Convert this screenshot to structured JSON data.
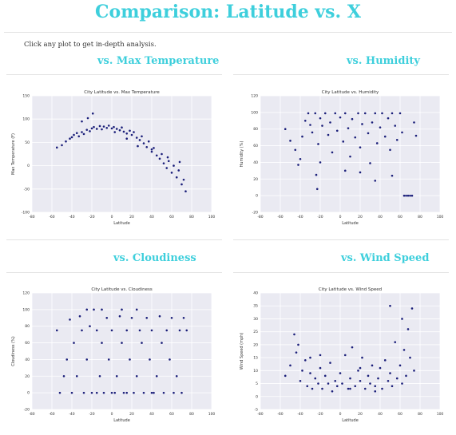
{
  "page": {
    "title": "Comparison: Latitude vs. X",
    "intro": "Click any plot to get in-depth analysis."
  },
  "sections": [
    {
      "heading": "vs. Max Temperature"
    },
    {
      "heading": "vs. Humidity"
    },
    {
      "heading": "vs. Cloudiness"
    },
    {
      "heading": "vs. Wind Speed"
    }
  ],
  "colors": {
    "accent": "#3ecfdc",
    "point": "#1b1f7a",
    "plot_bg": "#eaeaf2"
  },
  "chart_data": [
    {
      "type": "scatter",
      "title": "City Latitude vs. Max Temperature",
      "xlabel": "Latitude",
      "ylabel": "Max Temperature (F)",
      "xlim": [
        -80,
        100
      ],
      "ylim": [
        -100,
        150
      ],
      "xticks": [
        -80,
        -60,
        -40,
        -20,
        0,
        20,
        40,
        60,
        80,
        100
      ],
      "yticks": [
        -100,
        -50,
        0,
        50,
        100,
        150
      ],
      "grid": true,
      "points": [
        [
          -55,
          39
        ],
        [
          -50,
          44
        ],
        [
          -46,
          52
        ],
        [
          -42,
          58
        ],
        [
          -40,
          61
        ],
        [
          -38,
          66
        ],
        [
          -35,
          70
        ],
        [
          -33,
          63
        ],
        [
          -30,
          72
        ],
        [
          -28,
          68
        ],
        [
          -25,
          77
        ],
        [
          -22,
          74
        ],
        [
          -20,
          80
        ],
        [
          -18,
          83
        ],
        [
          -15,
          79
        ],
        [
          -12,
          85
        ],
        [
          -10,
          78
        ],
        [
          -8,
          84
        ],
        [
          -5,
          81
        ],
        [
          -3,
          86
        ],
        [
          0,
          80
        ],
        [
          2,
          83
        ],
        [
          5,
          79
        ],
        [
          8,
          76
        ],
        [
          10,
          82
        ],
        [
          12,
          73
        ],
        [
          15,
          69
        ],
        [
          18,
          75
        ],
        [
          20,
          66
        ],
        [
          22,
          72
        ],
        [
          25,
          60
        ],
        [
          28,
          55
        ],
        [
          30,
          63
        ],
        [
          32,
          48
        ],
        [
          35,
          40
        ],
        [
          37,
          52
        ],
        [
          40,
          30
        ],
        [
          42,
          38
        ],
        [
          45,
          22
        ],
        [
          48,
          15
        ],
        [
          50,
          25
        ],
        [
          52,
          5
        ],
        [
          55,
          -5
        ],
        [
          57,
          10
        ],
        [
          60,
          -15
        ],
        [
          62,
          0
        ],
        [
          65,
          -25
        ],
        [
          67,
          -10
        ],
        [
          70,
          -40
        ],
        [
          72,
          -30
        ],
        [
          74,
          -55
        ],
        [
          -24,
          102
        ],
        [
          -19,
          112
        ],
        [
          -30,
          95
        ],
        [
          3,
          72
        ],
        [
          15,
          58
        ],
        [
          26,
          42
        ],
        [
          40,
          35
        ],
        [
          56,
          18
        ],
        [
          68,
          8
        ]
      ]
    },
    {
      "type": "scatter",
      "title": "City Latitude vs. Humidity",
      "xlabel": "Latitude",
      "ylabel": "Humidity (%)",
      "xlim": [
        -80,
        100
      ],
      "ylim": [
        -20,
        120
      ],
      "xticks": [
        -80,
        -60,
        -40,
        -20,
        0,
        20,
        40,
        60,
        80,
        100
      ],
      "yticks": [
        -20,
        0,
        20,
        40,
        60,
        80,
        100,
        120
      ],
      "grid": true,
      "points": [
        [
          -55,
          80
        ],
        [
          -50,
          66
        ],
        [
          -45,
          55
        ],
        [
          -42,
          37
        ],
        [
          -40,
          44
        ],
        [
          -38,
          71
        ],
        [
          -35,
          90
        ],
        [
          -32,
          99
        ],
        [
          -30,
          85
        ],
        [
          -28,
          76
        ],
        [
          -25,
          99
        ],
        [
          -22,
          62
        ],
        [
          -20,
          93
        ],
        [
          -18,
          84
        ],
        [
          -15,
          99
        ],
        [
          -12,
          73
        ],
        [
          -10,
          88
        ],
        [
          -8,
          52
        ],
        [
          -5,
          99
        ],
        [
          -3,
          78
        ],
        [
          0,
          94
        ],
        [
          3,
          65
        ],
        [
          5,
          99
        ],
        [
          8,
          81
        ],
        [
          10,
          47
        ],
        [
          12,
          92
        ],
        [
          15,
          70
        ],
        [
          18,
          99
        ],
        [
          20,
          58
        ],
        [
          22,
          86
        ],
        [
          25,
          99
        ],
        [
          28,
          75
        ],
        [
          30,
          39
        ],
        [
          32,
          88
        ],
        [
          35,
          99
        ],
        [
          37,
          63
        ],
        [
          40,
          82
        ],
        [
          42,
          99
        ],
        [
          45,
          71
        ],
        [
          48,
          93
        ],
        [
          50,
          55
        ],
        [
          52,
          99
        ],
        [
          55,
          84
        ],
        [
          57,
          67
        ],
        [
          60,
          99
        ],
        [
          62,
          76
        ],
        [
          64,
          0
        ],
        [
          66,
          0
        ],
        [
          68,
          0
        ],
        [
          70,
          0
        ],
        [
          72,
          0
        ],
        [
          74,
          88
        ],
        [
          76,
          72
        ],
        [
          -24,
          25
        ],
        [
          -23,
          8
        ],
        [
          -20,
          40
        ],
        [
          5,
          30
        ],
        [
          20,
          28
        ],
        [
          35,
          18
        ],
        [
          52,
          24
        ]
      ]
    },
    {
      "type": "scatter",
      "title": "City Latitude vs. Cloudiness",
      "xlabel": "Latitude",
      "ylabel": "Cloudiness (%)",
      "xlim": [
        -80,
        100
      ],
      "ylim": [
        -20,
        120
      ],
      "xticks": [
        -80,
        -60,
        -40,
        -20,
        0,
        20,
        40,
        60,
        80,
        100
      ],
      "yticks": [
        -20,
        0,
        20,
        40,
        60,
        80,
        100,
        120
      ],
      "grid": true,
      "points": [
        [
          -55,
          75
        ],
        [
          -52,
          0
        ],
        [
          -48,
          20
        ],
        [
          -45,
          40
        ],
        [
          -42,
          88
        ],
        [
          -40,
          0
        ],
        [
          -38,
          60
        ],
        [
          -35,
          20
        ],
        [
          -32,
          92
        ],
        [
          -30,
          75
        ],
        [
          -28,
          0
        ],
        [
          -25,
          40
        ],
        [
          -22,
          80
        ],
        [
          -20,
          0
        ],
        [
          -18,
          100
        ],
        [
          -15,
          75
        ],
        [
          -12,
          20
        ],
        [
          -10,
          60
        ],
        [
          -8,
          0
        ],
        [
          -5,
          90
        ],
        [
          -3,
          40
        ],
        [
          0,
          75
        ],
        [
          3,
          0
        ],
        [
          5,
          20
        ],
        [
          8,
          92
        ],
        [
          10,
          60
        ],
        [
          12,
          0
        ],
        [
          15,
          75
        ],
        [
          18,
          40
        ],
        [
          20,
          90
        ],
        [
          22,
          0
        ],
        [
          25,
          20
        ],
        [
          28,
          75
        ],
        [
          30,
          60
        ],
        [
          32,
          0
        ],
        [
          35,
          90
        ],
        [
          38,
          40
        ],
        [
          40,
          75
        ],
        [
          42,
          0
        ],
        [
          45,
          20
        ],
        [
          48,
          92
        ],
        [
          50,
          60
        ],
        [
          52,
          0
        ],
        [
          55,
          75
        ],
        [
          58,
          40
        ],
        [
          60,
          90
        ],
        [
          62,
          0
        ],
        [
          65,
          20
        ],
        [
          68,
          75
        ],
        [
          70,
          0
        ],
        [
          72,
          90
        ],
        [
          75,
          75
        ],
        [
          -25,
          100
        ],
        [
          -10,
          100
        ],
        [
          10,
          100
        ],
        [
          25,
          100
        ],
        [
          -15,
          0
        ],
        [
          0,
          0
        ],
        [
          15,
          0
        ],
        [
          40,
          0
        ]
      ]
    },
    {
      "type": "scatter",
      "title": "City Latitude vs. Wind Speed",
      "xlabel": "Latitude",
      "ylabel": "Wind Speed (mph)",
      "xlim": [
        -80,
        100
      ],
      "ylim": [
        -5,
        40
      ],
      "xticks": [
        -80,
        -60,
        -40,
        -20,
        0,
        20,
        40,
        60,
        80,
        100
      ],
      "yticks": [
        -5,
        0,
        5,
        10,
        15,
        20,
        25,
        30,
        35,
        40
      ],
      "grid": true,
      "points": [
        [
          -55,
          8
        ],
        [
          -50,
          12
        ],
        [
          -46,
          24
        ],
        [
          -44,
          17
        ],
        [
          -42,
          20
        ],
        [
          -40,
          6
        ],
        [
          -38,
          10
        ],
        [
          -35,
          14
        ],
        [
          -33,
          4
        ],
        [
          -30,
          9
        ],
        [
          -28,
          3
        ],
        [
          -25,
          7
        ],
        [
          -22,
          5
        ],
        [
          -20,
          11
        ],
        [
          -18,
          3
        ],
        [
          -15,
          8
        ],
        [
          -12,
          5
        ],
        [
          -10,
          13
        ],
        [
          -8,
          2
        ],
        [
          -5,
          6
        ],
        [
          -3,
          4
        ],
        [
          0,
          9
        ],
        [
          2,
          5
        ],
        [
          5,
          16
        ],
        [
          8,
          3
        ],
        [
          10,
          7
        ],
        [
          12,
          19
        ],
        [
          15,
          4
        ],
        [
          18,
          10
        ],
        [
          20,
          6
        ],
        [
          22,
          15
        ],
        [
          25,
          3
        ],
        [
          28,
          8
        ],
        [
          30,
          5
        ],
        [
          32,
          12
        ],
        [
          35,
          4
        ],
        [
          38,
          7
        ],
        [
          40,
          11
        ],
        [
          42,
          3
        ],
        [
          45,
          14
        ],
        [
          48,
          6
        ],
        [
          50,
          9
        ],
        [
          52,
          4
        ],
        [
          55,
          21
        ],
        [
          57,
          7
        ],
        [
          60,
          12
        ],
        [
          62,
          5
        ],
        [
          64,
          18
        ],
        [
          66,
          8
        ],
        [
          68,
          26
        ],
        [
          70,
          15
        ],
        [
          72,
          34
        ],
        [
          74,
          10
        ],
        [
          50,
          35
        ],
        [
          -20,
          16
        ],
        [
          20,
          11
        ],
        [
          35,
          2
        ],
        [
          62,
          30
        ],
        [
          10,
          3
        ],
        [
          -30,
          15
        ]
      ]
    }
  ]
}
